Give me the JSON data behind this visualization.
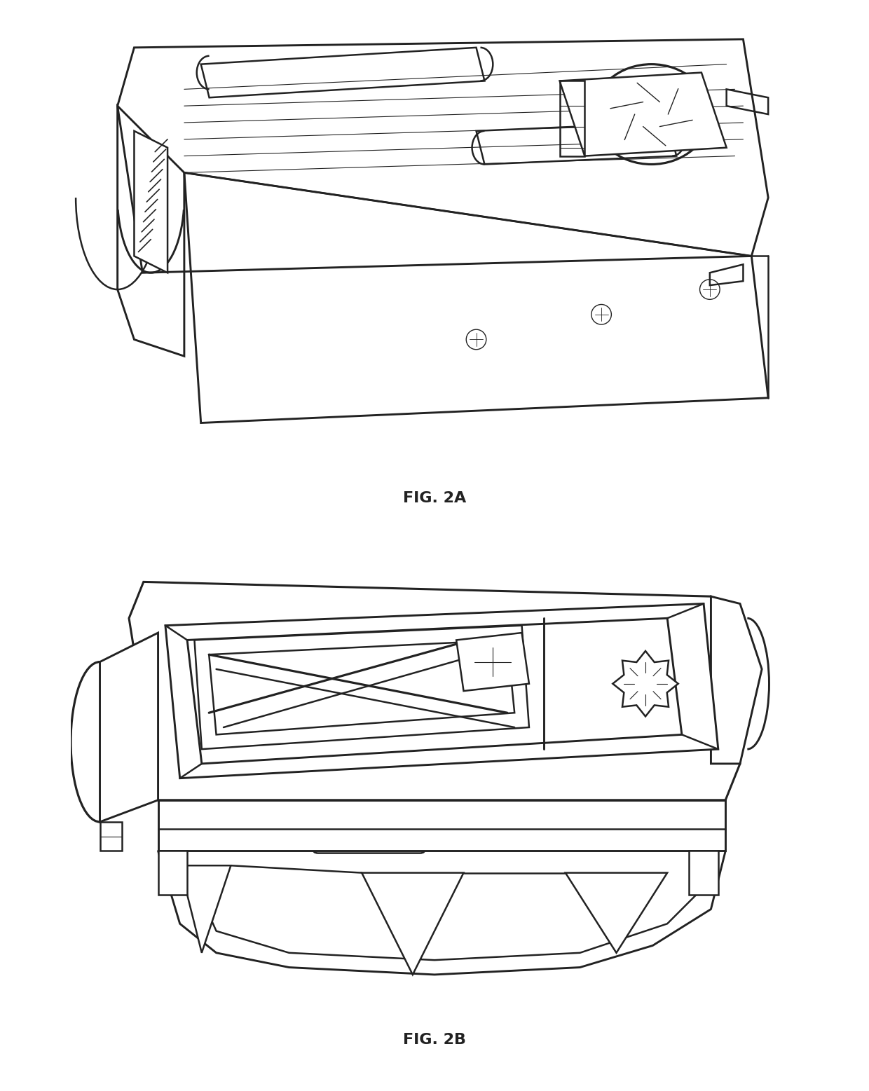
{
  "fig_label_2a": "FIG. 2A",
  "fig_label_2b": "FIG. 2B",
  "label_fontsize": 16,
  "label_fontweight": "bold",
  "background_color": "#ffffff",
  "line_color": "#222222",
  "line_width": 1.8
}
